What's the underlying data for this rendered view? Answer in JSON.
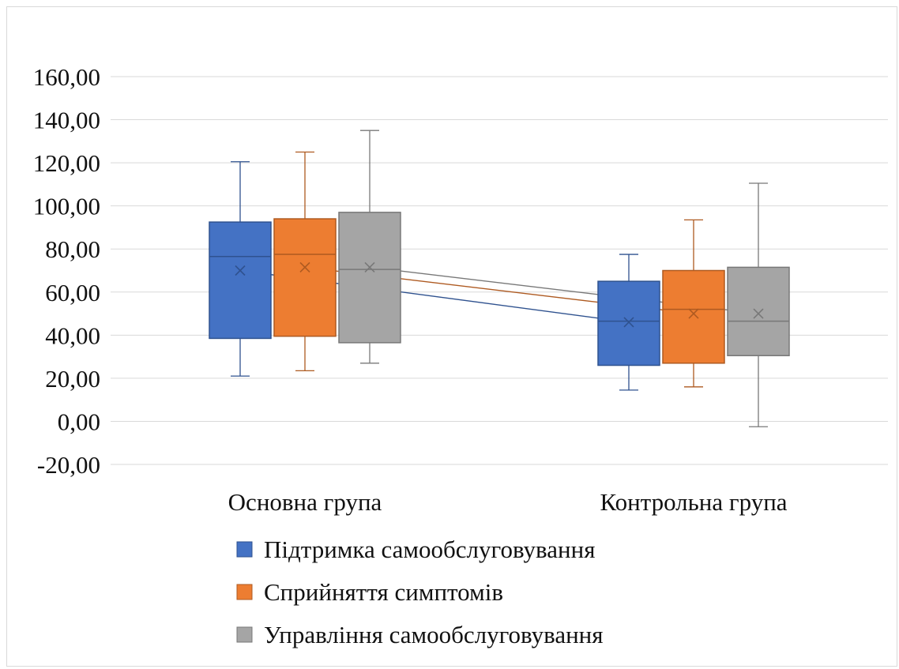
{
  "chart_data": {
    "type": "boxplot",
    "title": "",
    "xlabel": "",
    "ylabel": "",
    "ylim": [
      -20,
      160
    ],
    "y_ticks": [
      "160,00",
      "140,00",
      "120,00",
      "100,00",
      "80,00",
      "60,00",
      "40,00",
      "20,00",
      "0,00",
      "-20,00"
    ],
    "y_tick_values": [
      160,
      140,
      120,
      100,
      80,
      60,
      40,
      20,
      0,
      -20
    ],
    "categories": [
      "Основна група",
      "Контрольна група"
    ],
    "grid": true,
    "legend_position": "bottom",
    "mean_markers": true,
    "mean_lines": true,
    "series": [
      {
        "name": "Підтримка самообслуговування",
        "color": "#4472C4",
        "boxes": [
          {
            "min": 21,
            "q1": 38.5,
            "median": 76.5,
            "q3": 92.5,
            "max": 120.5,
            "mean": 70
          },
          {
            "min": 14.5,
            "q1": 26,
            "median": 46.5,
            "q3": 65,
            "max": 77.5,
            "mean": 46
          }
        ]
      },
      {
        "name": "Сприйняття симптомів",
        "color": "#ED7D31",
        "boxes": [
          {
            "min": 23.5,
            "q1": 39.5,
            "median": 77.5,
            "q3": 94,
            "max": 125,
            "mean": 71.5
          },
          {
            "min": 16,
            "q1": 27,
            "median": 52,
            "q3": 70,
            "max": 93.5,
            "mean": 50
          }
        ]
      },
      {
        "name": "Управління самообслуговування",
        "color": "#A5A5A5",
        "boxes": [
          {
            "min": 27,
            "q1": 36.5,
            "median": 70.5,
            "q3": 97,
            "max": 135,
            "mean": 71.5
          },
          {
            "min": -2.5,
            "q1": 30.5,
            "median": 46.5,
            "q3": 71.5,
            "max": 110.5,
            "mean": 50
          }
        ]
      }
    ]
  }
}
